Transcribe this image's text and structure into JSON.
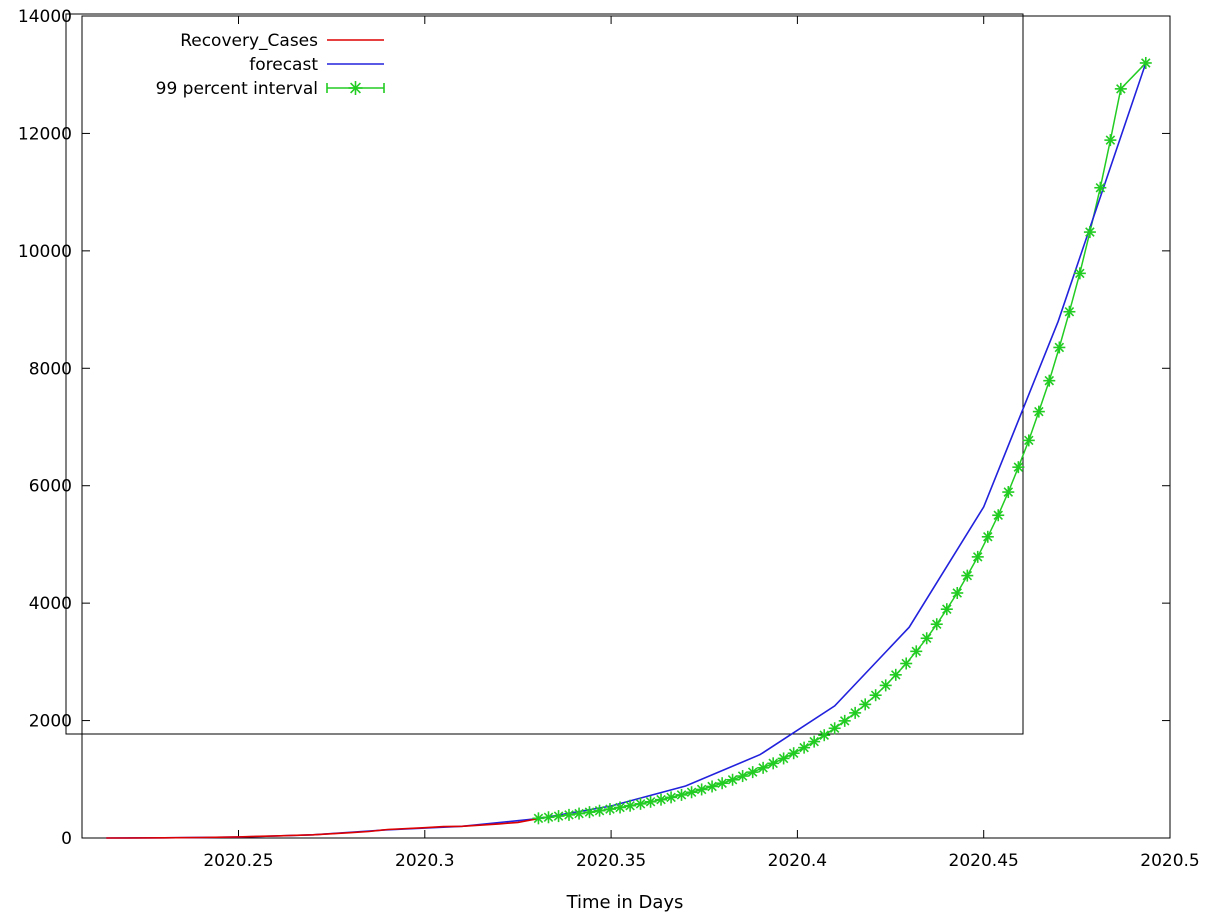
{
  "chart_data": {
    "type": "line",
    "title": "",
    "xlabel": "Time in Days",
    "ylabel": "",
    "xlim": [
      2020.208,
      2020.5
    ],
    "ylim": [
      0,
      14000
    ],
    "xticks": [
      2020.25,
      2020.3,
      2020.35,
      2020.4,
      2020.45,
      2020.5
    ],
    "xtick_labels": [
      "2020.25",
      "2020.3",
      "2020.35",
      "2020.4",
      "2020.45",
      "2020.5"
    ],
    "yticks": [
      0,
      2000,
      4000,
      6000,
      8000,
      10000,
      12000,
      14000
    ],
    "ytick_labels": [
      "0",
      "2000",
      "4000",
      "6000",
      "8000",
      "10000",
      "12000",
      "14000"
    ],
    "grid": false,
    "legend_position": "top-left",
    "colors": {
      "recovery": "#dd0000",
      "forecast": "#2222dd",
      "interval": "#22cc22"
    },
    "legend": [
      {
        "key": "recovery",
        "label": "Recovery_Cases",
        "style": "line"
      },
      {
        "key": "forecast",
        "label": "forecast",
        "style": "line"
      },
      {
        "key": "interval",
        "label": "99 percent interval",
        "style": "errorbar-star"
      }
    ],
    "series": [
      {
        "name": "Recovery_Cases",
        "key": "recovery",
        "x": [
          2020.2145,
          2020.22,
          2020.23,
          2020.24,
          2020.25,
          2020.26,
          2020.27,
          2020.28,
          2020.285,
          2020.29,
          2020.3,
          2020.305,
          2020.31,
          2020.32,
          2020.325,
          2020.3305
        ],
        "y": [
          0,
          0,
          3,
          8,
          18,
          35,
          55,
          90,
          110,
          145,
          175,
          195,
          200,
          240,
          265,
          330
        ]
      },
      {
        "name": "forecast",
        "key": "forecast",
        "x": [
          2020.2145,
          2020.23,
          2020.25,
          2020.27,
          2020.29,
          2020.31,
          2020.3305,
          2020.35,
          2020.37,
          2020.39,
          2020.41,
          2020.43,
          2020.45,
          2020.47,
          2020.4935
        ],
        "y": [
          0,
          3,
          15,
          55,
          140,
          200,
          330,
          545,
          885,
          1420,
          2250,
          3590,
          5640,
          8800,
          13200
        ]
      },
      {
        "name": "99 percent interval",
        "key": "interval",
        "x": [
          2020.3305,
          2020.3332,
          2020.3359,
          2020.3387,
          2020.3414,
          2020.3442,
          2020.3469,
          2020.3497,
          2020.3524,
          2020.3551,
          2020.3579,
          2020.3606,
          2020.3634,
          2020.3661,
          2020.3689,
          2020.3716,
          2020.3743,
          2020.3771,
          2020.3798,
          2020.3826,
          2020.3853,
          2020.388,
          2020.3908,
          2020.3935,
          2020.3963,
          2020.399,
          2020.4018,
          2020.4045,
          2020.4072,
          2020.41,
          2020.4127,
          2020.4155,
          2020.4182,
          2020.421,
          2020.4237,
          2020.4264,
          2020.4292,
          2020.4319,
          2020.4347,
          2020.4374,
          2020.4401,
          2020.4429,
          2020.4456,
          2020.4484,
          2020.4511,
          2020.4539,
          2020.4566,
          2020.4593,
          2020.4621,
          2020.4648,
          2020.4676,
          2020.4703,
          2020.473,
          2020.4758,
          2020.4785,
          2020.4813,
          2020.484,
          2020.4868,
          2020.4895,
          2020.4922,
          2020.4935
        ],
        "y": [
          335,
          353,
          373,
          394,
          416,
          440,
          465,
          492,
          520,
          550,
          582,
          617,
          653,
          692,
          734,
          779,
          827,
          878,
          933,
          992,
          1055,
          1122,
          1195,
          1272,
          1355,
          1444,
          1539,
          1642,
          1751,
          1869,
          1995,
          2131,
          2276,
          2432,
          2599,
          2779,
          2972,
          3179,
          3402,
          3641,
          3897,
          4173,
          4469,
          4788,
          5130,
          5497,
          5892,
          6316,
          6772,
          7262,
          7789,
          8355,
          8963,
          9617,
          10320,
          11075,
          11886,
          12759,
          13696,
          14705,
          13200
        ]
      }
    ]
  }
}
